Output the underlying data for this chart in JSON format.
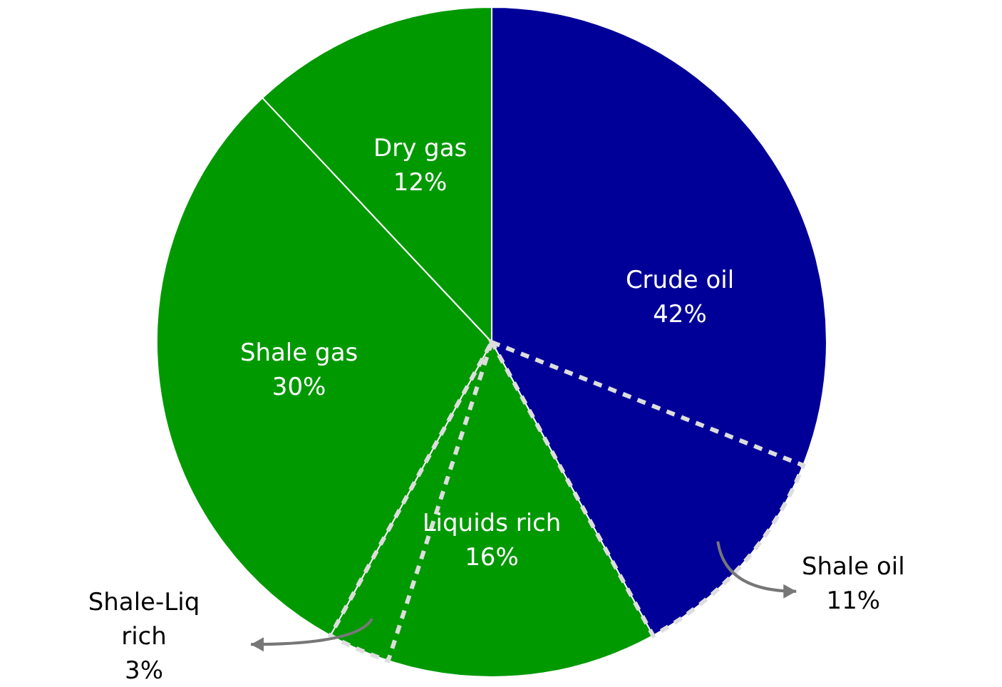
{
  "chart_data": {
    "type": "pie",
    "categories": [
      "Crude oil",
      "Liquids rich",
      "Shale gas",
      "Dry gas"
    ],
    "values": [
      42,
      16,
      30,
      12
    ],
    "colors": [
      "#000099",
      "#009900",
      "#009900",
      "#009900"
    ],
    "value_labels": [
      "42%",
      "16%",
      "30%",
      "12%"
    ],
    "annotations": [
      {
        "text": "Shale oil\n11%",
        "x": "Crude oil"
      },
      {
        "text": "Shale-Liq\nrich\n3%",
        "x": "Liquids rich"
      }
    ]
  }
}
